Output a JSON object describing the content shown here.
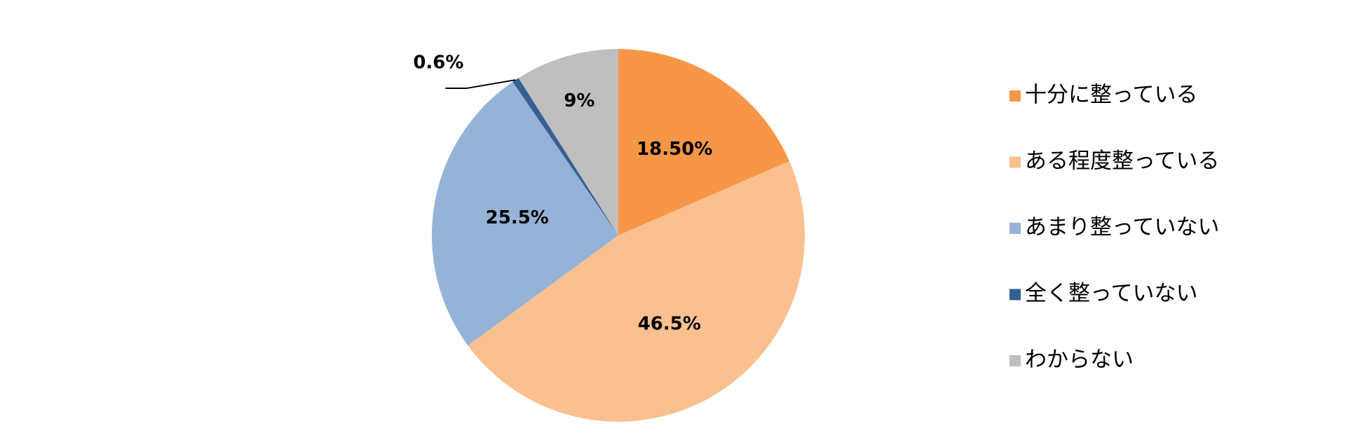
{
  "chart_data": {
    "type": "pie",
    "categories": [
      "十分に整っている",
      "ある程度整っている",
      "あまり整っていない",
      "全く整っていない",
      "わからない"
    ],
    "values": [
      18.5,
      46.5,
      25.5,
      0.6,
      9
    ],
    "value_labels": [
      "18.50%",
      "46.5%",
      "25.5%",
      "0.6%",
      "9%"
    ],
    "colors": [
      "#f79646",
      "#fac090",
      "#95b3d7",
      "#376092",
      "#bfbfbf"
    ],
    "legend": "right"
  }
}
